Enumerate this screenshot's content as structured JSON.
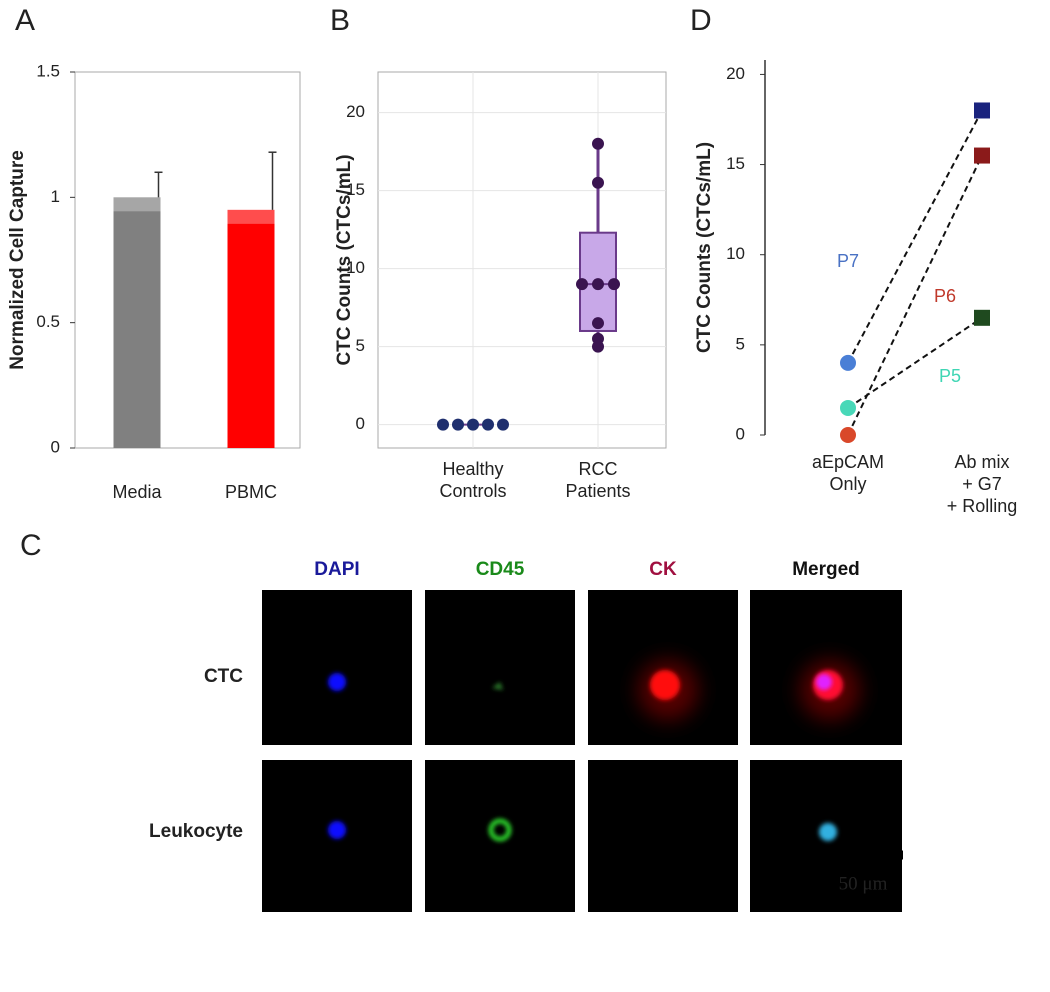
{
  "chart_data": [
    {
      "panel": "A",
      "type": "bar",
      "ylabel": "Normalized Cell Capture",
      "categories": [
        "Media",
        "PBMC"
      ],
      "values": [
        1.0,
        0.95
      ],
      "errors": [
        0.1,
        0.23
      ],
      "colors": [
        "#808080",
        "#ff0000"
      ],
      "ylim": [
        0,
        1.5
      ],
      "yticks": [
        0,
        0.5,
        1,
        1.5
      ],
      "grid": false
    },
    {
      "panel": "B",
      "type": "box",
      "ylabel": "CTC Counts (CTCs/mL)",
      "categories": [
        [
          "Healthy",
          "Controls"
        ],
        [
          "RCC",
          "Patients"
        ]
      ],
      "groups": [
        {
          "color": "#1f2f6e",
          "box_fill": "#c8a8e8",
          "box_stroke": "#6a3a8a",
          "points": [
            0,
            0,
            0,
            0,
            0
          ],
          "box": {
            "min": 0,
            "q1": 0,
            "median": 0,
            "q3": 0,
            "max": 0
          }
        },
        {
          "color": "#3a1450",
          "box_fill": "#c8a8e8",
          "box_stroke": "#6a3a8a",
          "points": [
            18,
            15.5,
            9,
            9,
            9,
            6.5,
            5.5,
            5
          ],
          "box": {
            "min": 5,
            "q1": 6,
            "median": 9,
            "q3": 12.3,
            "max": 18
          }
        }
      ],
      "ylim": [
        -1.5,
        22.6
      ],
      "yticks": [
        0,
        5,
        10,
        15,
        20
      ],
      "grid": true
    },
    {
      "panel": "D",
      "type": "paired",
      "ylabel": "CTC Counts (CTCs/mL)",
      "categories": [
        [
          "aEpCAM",
          "Only"
        ],
        [
          "Ab mix",
          "+ G7",
          "+ Rolling"
        ]
      ],
      "series": [
        {
          "name": "P7",
          "label_color": "#4a72c4",
          "colors": [
            "#4a7fd6",
            "#1a237e"
          ],
          "values": [
            4,
            18
          ]
        },
        {
          "name": "P6",
          "label_color": "#c0392b",
          "colors": [
            "#d9482a",
            "#8b1a1a"
          ],
          "values": [
            0,
            15.5
          ]
        },
        {
          "name": "P5",
          "label_color": "#3fd6b4",
          "colors": [
            "#48d8b8",
            "#1f4a1f"
          ],
          "values": [
            1.5,
            6.5
          ]
        }
      ],
      "ylim": [
        0,
        20.8
      ],
      "yticks": [
        0,
        5,
        10,
        15,
        20
      ],
      "grid": false
    }
  ],
  "panel_c": {
    "panel": "C",
    "columns": [
      {
        "label": "DAPI",
        "color": "#1a1a9a"
      },
      {
        "label": "CD45",
        "color": "#1a8a1a"
      },
      {
        "label": "CK",
        "color": "#a01040"
      },
      {
        "label": "Merged",
        "color": "#111111"
      }
    ],
    "rows": [
      "CTC",
      "Leukocyte"
    ],
    "scale_bar": "50 μm"
  }
}
